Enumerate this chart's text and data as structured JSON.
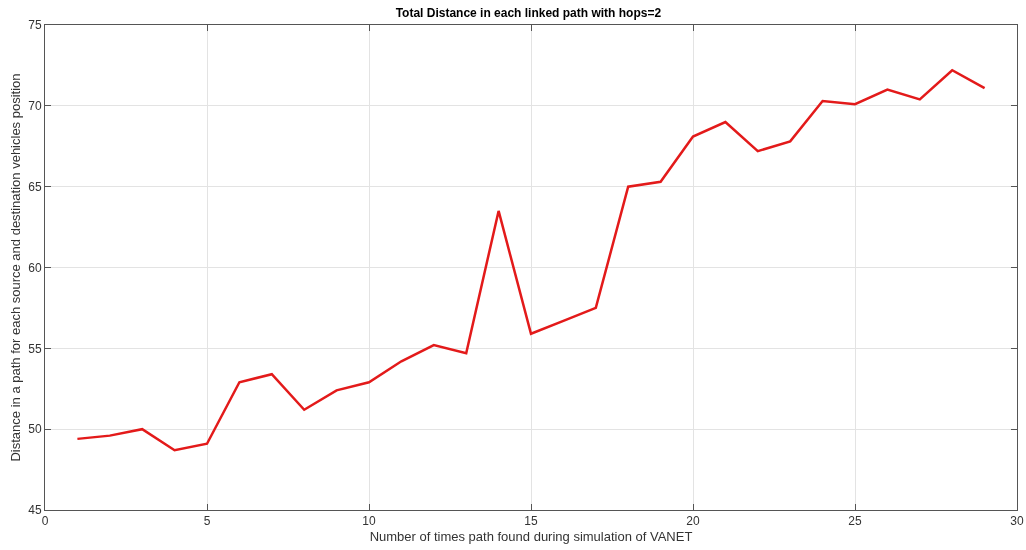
{
  "chart_data": {
    "type": "line",
    "title": "Total Distance in each linked path with hops=2",
    "xlabel": "Number of times path found during simulation of VANET",
    "ylabel": "Distance in a path for each source and destination vehicles position",
    "x": [
      1,
      2,
      3,
      4,
      5,
      6,
      7,
      8,
      9,
      10,
      11,
      12,
      13,
      14,
      15,
      16,
      17,
      18,
      19,
      20,
      21,
      22,
      23,
      24,
      25,
      26,
      27,
      28,
      29
    ],
    "series": [
      {
        "color": "#e31a1a",
        "values": [
          49.4,
          49.6,
          50.0,
          48.7,
          49.1,
          52.9,
          53.4,
          51.2,
          52.4,
          52.9,
          54.2,
          55.2,
          54.7,
          63.5,
          55.9,
          56.7,
          57.5,
          65.0,
          65.3,
          68.1,
          69.0,
          67.2,
          67.8,
          70.3,
          70.1,
          71.0,
          70.4,
          72.2,
          71.1
        ]
      }
    ],
    "xlim": [
      0,
      30
    ],
    "xticks": [
      0,
      5,
      10,
      15,
      20,
      25,
      30
    ],
    "ylim": [
      45,
      75
    ],
    "yticks": [
      45,
      50,
      55,
      60,
      65,
      70,
      75
    ],
    "grid": true,
    "marker": "none",
    "line_style": "solid"
  }
}
